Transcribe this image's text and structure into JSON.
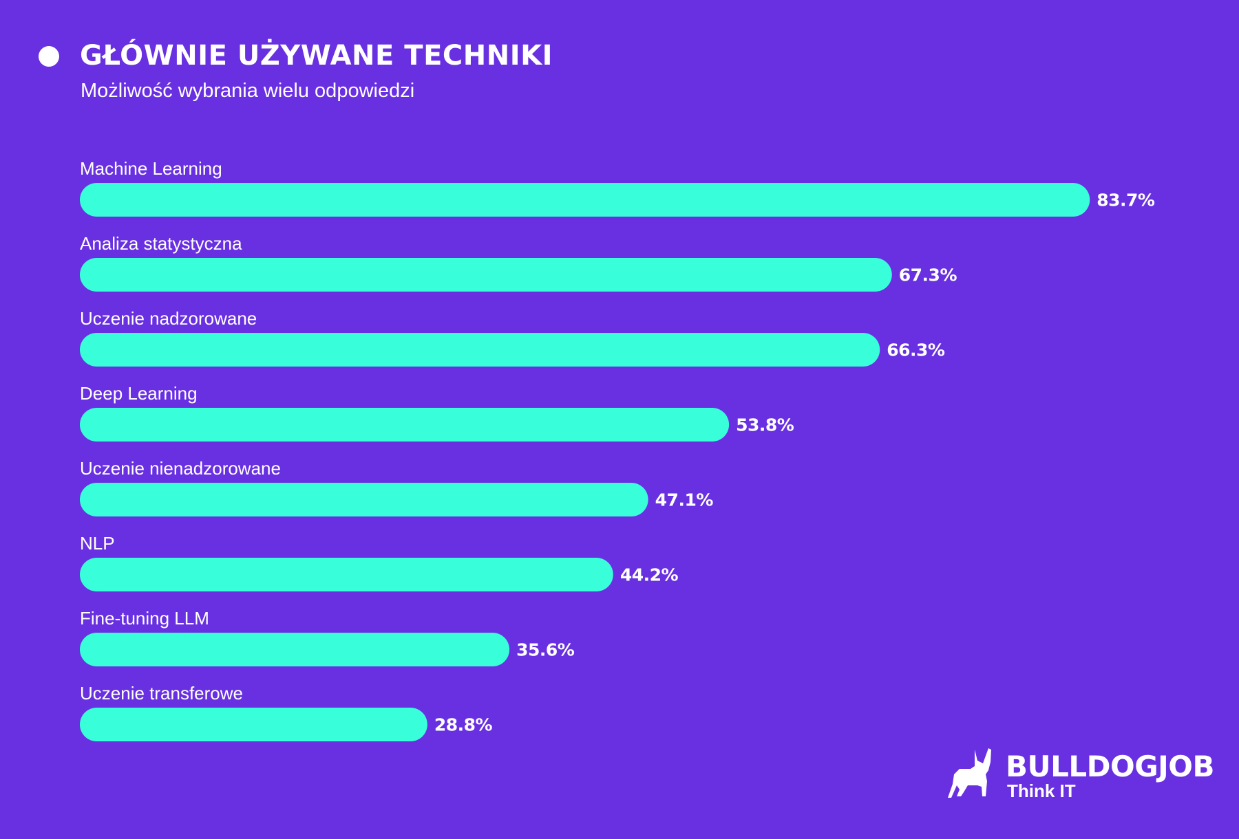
{
  "header": {
    "title": "GŁÓWNIE UŻYWANE TECHNIKI",
    "subtitle": "Możliwość wybrania wielu odpowiedzi"
  },
  "colors": {
    "background": "#6930E2",
    "bar": "#38FFD9",
    "text": "#FFFFFF"
  },
  "chart_data": {
    "type": "bar",
    "orientation": "horizontal",
    "categories": [
      "Machine Learning",
      "Analiza statystyczna",
      "Uczenie nadzorowane",
      "Deep Learning",
      "Uczenie nienadzorowane",
      "NLP",
      "Fine-tuning LLM",
      "Uczenie transferowe"
    ],
    "values": [
      83.7,
      67.3,
      66.3,
      53.8,
      47.1,
      44.2,
      35.6,
      28.8
    ],
    "value_labels": [
      "83.7%",
      "67.3%",
      "66.3%",
      "53.8%",
      "47.1%",
      "44.2%",
      "35.6%",
      "28.8%"
    ],
    "unit": "%",
    "grid": false,
    "xlim": [
      0,
      100
    ]
  },
  "logo": {
    "brand": "BULLDOGJOB",
    "tagline": "Think IT",
    "icon": "bulldog-icon"
  }
}
